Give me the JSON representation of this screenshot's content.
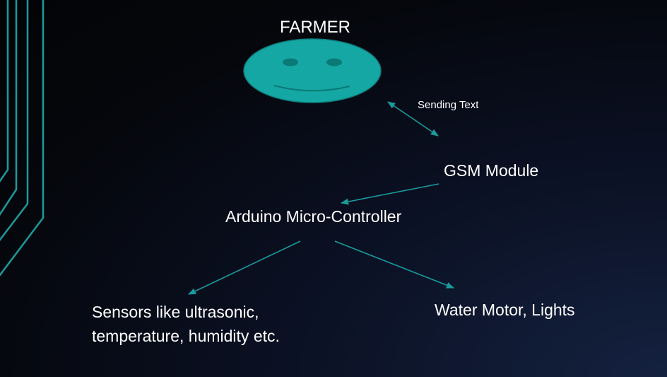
{
  "diagram": {
    "nodes": {
      "farmer": "FARMER",
      "gsm_module": "GSM Module",
      "arduino": "Arduino Micro-Controller",
      "sensors": [
        "Sensors like ultrasonic,",
        "temperature, humidity etc."
      ],
      "outputs": "Water Motor, Lights"
    },
    "edges": {
      "farmer_gsm": "Sending Text"
    },
    "colors": {
      "accent": "#1a9b9b",
      "face_fill": "#15a7a3",
      "face_stroke": "#0d7e7c",
      "face_detail": "#0b7a76",
      "text": "#ffffff"
    },
    "icons": {
      "farmer": "smiley-face-icon"
    }
  }
}
